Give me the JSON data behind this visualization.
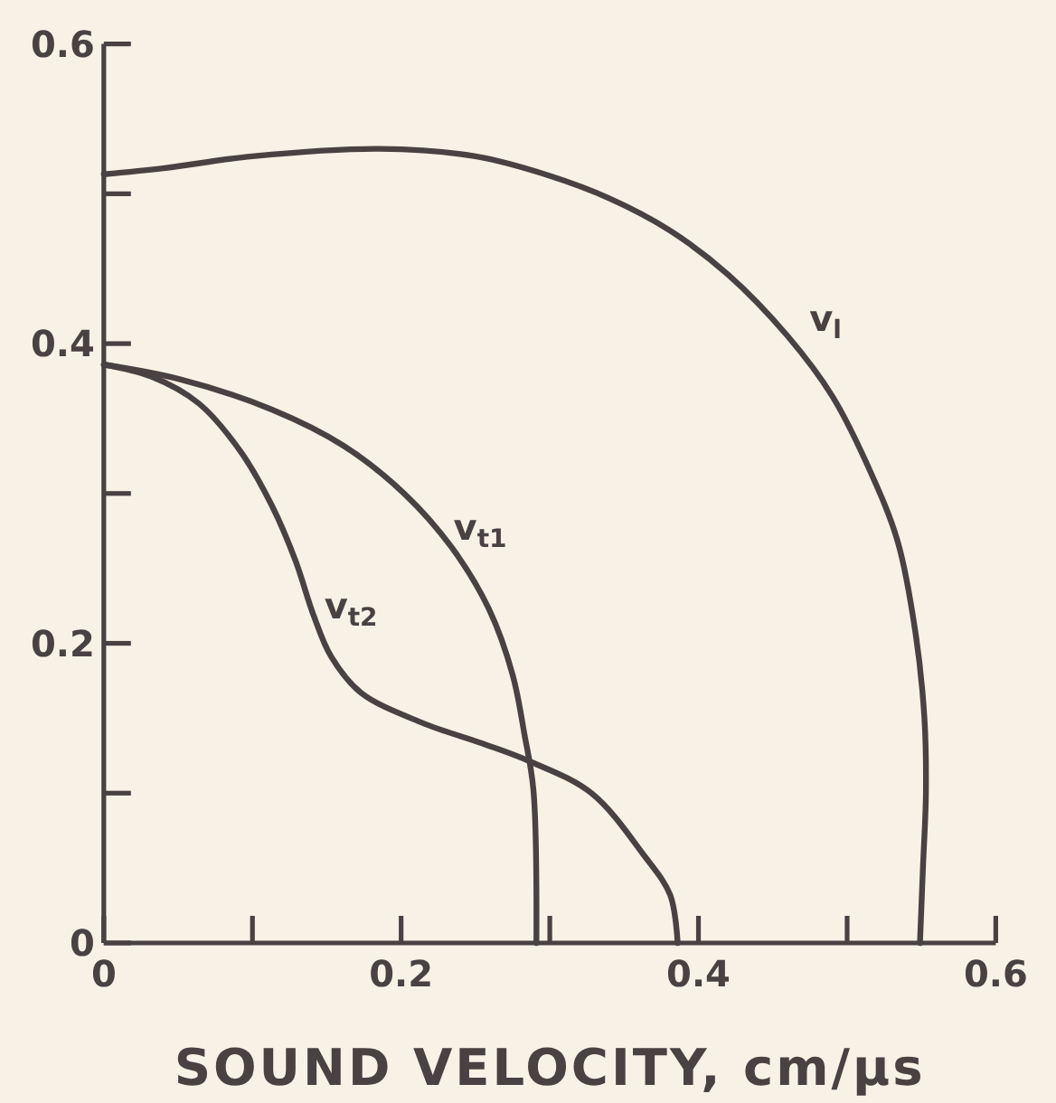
{
  "chart_data": {
    "type": "line",
    "xlabel": "SOUND VELOCITY, cm/μs",
    "xlim": [
      0,
      0.6
    ],
    "ylim": [
      0,
      0.6
    ],
    "xticks": [
      0,
      {
        "value": 0.1,
        "label": null
      },
      0.2,
      {
        "value": 0.3,
        "label": null
      },
      0.4,
      {
        "value": 0.5,
        "label": null
      },
      0.6
    ],
    "yticks": [
      0,
      {
        "value": 0.1,
        "label": null
      },
      0.2,
      {
        "value": 0.3,
        "label": null
      },
      0.4,
      {
        "value": 0.5,
        "label": null
      },
      0.6
    ],
    "series": [
      {
        "name": "v$_{l}$",
        "color": "#4b4042",
        "x": [
          0,
          0.04,
          0.1,
          0.186,
          0.25,
          0.3,
          0.34,
          0.38,
          0.42,
          0.46,
          0.49,
          0.515,
          0.534,
          0.546,
          0.552,
          0.553,
          0.551,
          0.549
        ],
        "values": [
          0.513,
          0.517,
          0.525,
          0.53,
          0.525,
          0.512,
          0.497,
          0.476,
          0.446,
          0.405,
          0.365,
          0.316,
          0.268,
          0.207,
          0.15,
          0.1,
          0.05,
          0
        ]
      },
      {
        "name": "v$_{t1}$",
        "color": "#4b4042",
        "x": [
          0,
          0.052,
          0.113,
          0.161,
          0.202,
          0.234,
          0.259,
          0.275,
          0.283,
          0.289,
          0.291
        ],
        "values": [
          0.386,
          0.376,
          0.356,
          0.332,
          0.3,
          0.264,
          0.223,
          0.179,
          0.139,
          0.102,
          0
        ]
      },
      {
        "name": "v$_{t2}$",
        "color": "#4b4042",
        "x": [
          0,
          0.032,
          0.064,
          0.092,
          0.113,
          0.129,
          0.141,
          0.153,
          0.173,
          0.214,
          0.255,
          0.287,
          0.328,
          0.363,
          0.381,
          0.386
        ],
        "values": [
          0.386,
          0.378,
          0.36,
          0.328,
          0.292,
          0.255,
          0.219,
          0.191,
          0.167,
          0.147,
          0.133,
          0.121,
          0.1,
          0.059,
          0.032,
          0
        ]
      }
    ]
  }
}
